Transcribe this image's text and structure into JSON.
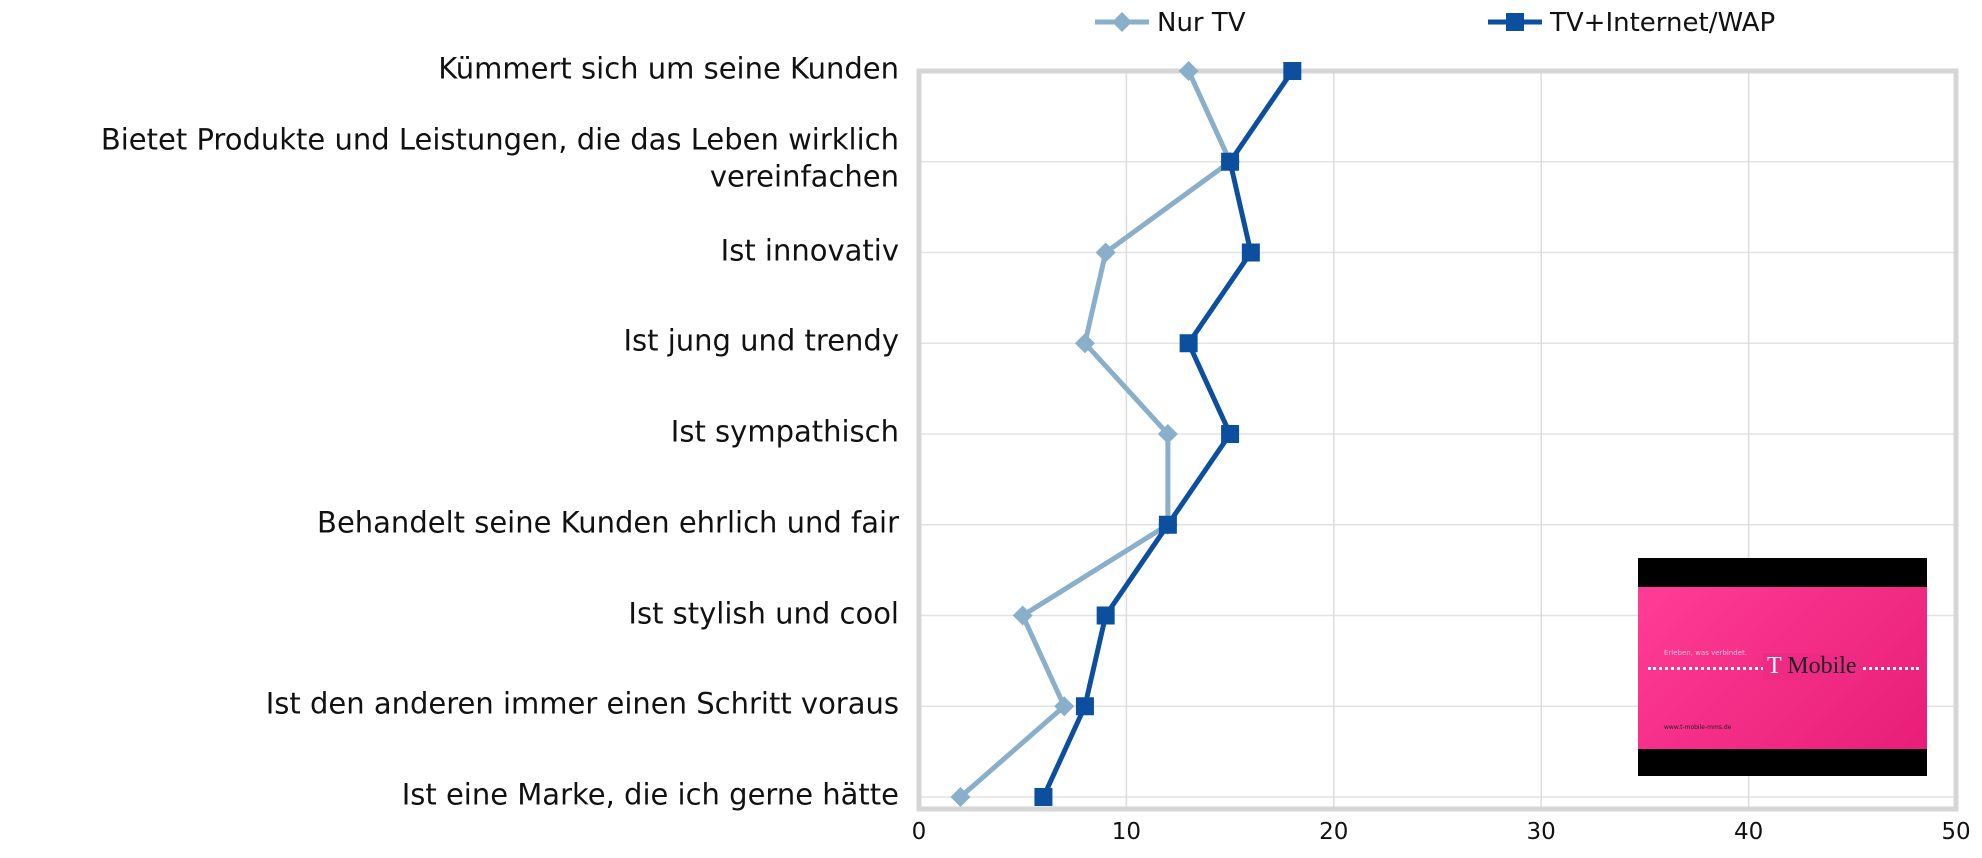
{
  "chart_data": {
    "type": "line",
    "orientation": "horizontal",
    "categories": [
      "Kümmert sich um seine Kunden",
      "Bietet Produkte und Leistungen, die das Leben wirklich vereinfachen",
      "Ist innovativ",
      "Ist jung und trendy",
      "Ist sympathisch",
      "Behandelt seine Kunden ehrlich und fair",
      "Ist stylish und cool",
      "Ist den anderen immer einen Schritt voraus",
      "Ist eine Marke, die ich gerne hätte"
    ],
    "series": [
      {
        "name": "Nur TV",
        "color": "#8aafca",
        "marker": "diamond",
        "values": [
          13,
          15,
          9,
          8,
          12,
          12,
          5,
          7,
          2
        ]
      },
      {
        "name": "TV+Internet/WAP",
        "color": "#0b4f9e",
        "marker": "square",
        "values": [
          18,
          15,
          16,
          13,
          15,
          12,
          9,
          8,
          6
        ]
      }
    ],
    "xlim": [
      0,
      50
    ],
    "xticks": [
      0,
      10,
      20,
      30,
      40,
      50
    ],
    "grid": true,
    "legend": "top"
  },
  "inset": {
    "tagline": "Erleben, was verbindet.",
    "logo_t": "T",
    "logo": "Mobile",
    "url": "www.t-mobile-mms.de"
  }
}
